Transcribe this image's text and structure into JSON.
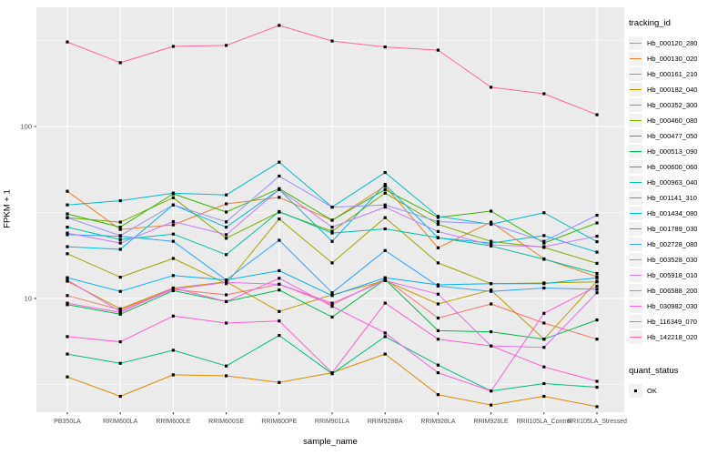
{
  "figure": {
    "background": "#FFFFFF",
    "panel_background": "#EBEBEB",
    "gridline_color": "#FFFFFF",
    "axis_text_color": "#4D4D4D",
    "tick_color": "#333333",
    "point_color": "#000000"
  },
  "axes": {
    "x_title": "sample_name",
    "y_title": "FPKM + 1"
  },
  "legend": {
    "tracking_title": "tracking_id",
    "quant_title": "quant_status",
    "quant_items": [
      {
        "label": "OK",
        "marker": "black-square"
      }
    ]
  },
  "chart_data": {
    "type": "line",
    "title": "",
    "xlabel": "sample_name",
    "ylabel": "FPKM + 1",
    "y_scale": "log10",
    "ylim": [
      2.18,
      493
    ],
    "y_major_ticks": [
      10,
      100
    ],
    "y_tick_labels": [
      "10",
      "100"
    ],
    "y_minor_gridlines": [
      3.162,
      31.62,
      316.2
    ],
    "grid": true,
    "legend_position": "right",
    "point_marker": "black-square",
    "categories": [
      "PB350LA",
      "RRIM600LA",
      "RRIM600LE",
      "RRIM600SE",
      "RRIM600PE",
      "RRIM901LA",
      "RRIM928BA",
      "RRIM928LA",
      "RRIM928LE",
      "RRII105LA_Control",
      "RRII105LA_Stressed"
    ],
    "series": [
      {
        "name": "Hb_000120_280",
        "color": "#F8766D",
        "values": [
          10.4,
          8.6,
          11.3,
          10.5,
          12.1,
          9.2,
          13.0,
          7.7,
          9.3,
          7.2,
          5.8
        ]
      },
      {
        "name": "Hb_000130_020",
        "color": "#EA8331",
        "values": [
          42,
          25.2,
          26.8,
          35.5,
          38.7,
          28.5,
          45,
          19.7,
          27.8,
          17,
          13.4
        ]
      },
      {
        "name": "Hb_000161_210",
        "color": "#D89000",
        "values": [
          3.5,
          2.7,
          3.6,
          3.55,
          3.25,
          3.7,
          4.75,
          2.76,
          2.4,
          2.7,
          2.35
        ]
      },
      {
        "name": "Hb_000182_040",
        "color": "#C09B00",
        "values": [
          12.6,
          8.7,
          11.5,
          12.5,
          8.4,
          10.5,
          12.7,
          9.3,
          11.2,
          5.8,
          12.6
        ]
      },
      {
        "name": "Hb_000352_300",
        "color": "#A3A500",
        "values": [
          18.2,
          13.3,
          17.1,
          12.2,
          29,
          16.1,
          29.5,
          16.1,
          12.2,
          12.3,
          12.5
        ]
      },
      {
        "name": "Hb_000460_080",
        "color": "#7CAE00",
        "values": [
          29.5,
          27.8,
          38.5,
          22.4,
          31.8,
          24.6,
          41,
          27,
          21.5,
          19.8,
          16
        ]
      },
      {
        "name": "Hb_000477_050",
        "color": "#39B600",
        "values": [
          31,
          26,
          40.6,
          31.8,
          43.5,
          28.5,
          43,
          29.6,
          32.2,
          21,
          27.5
        ]
      },
      {
        "name": "Hb_000513_090",
        "color": "#00BB4E",
        "values": [
          9.2,
          8.1,
          11.1,
          9.6,
          11.2,
          7.8,
          12.9,
          6.5,
          6.4,
          5.8,
          7.5
        ]
      },
      {
        "name": "Hb_000600_060",
        "color": "#00BF7D",
        "values": [
          4.75,
          4.2,
          5.0,
          4.05,
          6.1,
          3.65,
          6.0,
          4.1,
          2.9,
          3.2,
          3.05
        ]
      },
      {
        "name": "Hb_000963_040",
        "color": "#00C1A3",
        "values": [
          26,
          22,
          23.7,
          18,
          32,
          24,
          25.4,
          22.6,
          20.2,
          16.9,
          14
        ]
      },
      {
        "name": "Hb_001141_310",
        "color": "#00BFC4",
        "values": [
          35,
          37,
          41,
          40,
          62,
          34,
          54,
          30,
          27,
          31.5,
          21.4
        ]
      },
      {
        "name": "Hb_001434_080",
        "color": "#00BAE0",
        "values": [
          20,
          19.3,
          35,
          26,
          43,
          21.5,
          46,
          22.5,
          21,
          23.2,
          18.6
        ]
      },
      {
        "name": "Hb_001789_030",
        "color": "#00B0F6",
        "values": [
          13.2,
          11.0,
          13.6,
          12.8,
          14.5,
          10.4,
          13.2,
          12.0,
          12.2,
          12.2,
          13.2
        ]
      },
      {
        "name": "Hb_002728_080",
        "color": "#35A2FF",
        "values": [
          23.5,
          23,
          21.5,
          12.8,
          21.8,
          10.8,
          19,
          11.8,
          11.0,
          11.5,
          11.3
        ]
      },
      {
        "name": "Hb_003528_030",
        "color": "#9590FF",
        "values": [
          29.5,
          23.2,
          35,
          27.9,
          51.5,
          34,
          35,
          28,
          27.2,
          21.5,
          30.5
        ]
      },
      {
        "name": "Hb_005918_010",
        "color": "#C77CFF",
        "values": [
          24,
          21,
          28,
          23.5,
          43,
          26,
          34,
          24.5,
          20.5,
          20,
          23
        ]
      },
      {
        "name": "Hb_006588_200",
        "color": "#E76BF3",
        "values": [
          12.8,
          8.4,
          11.3,
          12.4,
          12.1,
          9.4,
          12.7,
          10.6,
          5.3,
          5.2,
          10.8
        ]
      },
      {
        "name": "Hb_030982_030",
        "color": "#FA62DB",
        "values": [
          9.4,
          8.3,
          11.5,
          9.6,
          13.1,
          9.0,
          6.3,
          3.7,
          2.9,
          8.2,
          11.8
        ]
      },
      {
        "name": "Hb_116349_070",
        "color": "#FF61CC",
        "values": [
          6.0,
          5.6,
          7.9,
          7.2,
          7.4,
          3.7,
          9.4,
          5.8,
          5.3,
          4.0,
          3.3
        ]
      },
      {
        "name": "Hb_142218_020",
        "color": "#FF6A98",
        "values": [
          310,
          235,
          292,
          296,
          387,
          314,
          290,
          278,
          169,
          155,
          117
        ]
      }
    ]
  }
}
